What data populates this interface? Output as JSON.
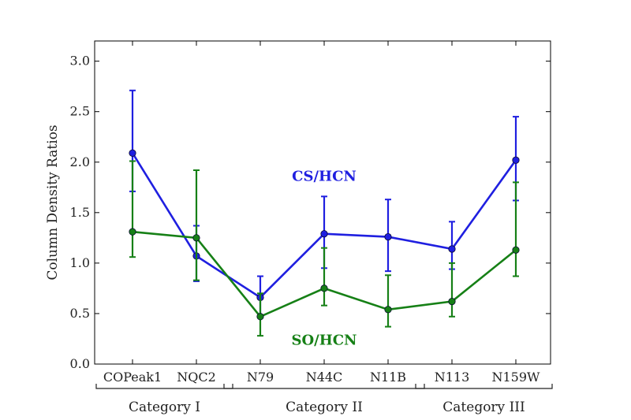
{
  "chart_data": {
    "type": "line",
    "title": "",
    "xlabel": "",
    "ylabel": "Column Density Ratios",
    "categories": [
      "COPeak1",
      "NQC2",
      "N79",
      "N44C",
      "N11B",
      "N113",
      "N159W"
    ],
    "ylim": [
      0.0,
      3.2
    ],
    "yticks": [
      "0.0",
      "0.5",
      "1.0",
      "1.5",
      "2.0",
      "2.5",
      "3.0"
    ],
    "ytick_values": [
      0.0,
      0.5,
      1.0,
      1.5,
      2.0,
      2.5,
      3.0
    ],
    "grid": false,
    "legend": "none",
    "series": [
      {
        "name": "CS/HCN",
        "color": "#1f1fe0",
        "values": [
          2.09,
          1.07,
          0.66,
          1.29,
          1.26,
          1.14,
          2.02
        ],
        "err_low": [
          1.71,
          0.82,
          0.47,
          0.95,
          0.92,
          0.94,
          1.62
        ],
        "err_high": [
          2.71,
          1.37,
          0.87,
          1.66,
          1.63,
          1.41,
          2.45
        ]
      },
      {
        "name": "SO/HCN",
        "color": "#168016",
        "values": [
          1.31,
          1.25,
          0.47,
          0.75,
          0.54,
          0.62,
          1.13
        ],
        "err_low": [
          1.06,
          0.83,
          0.28,
          0.58,
          0.37,
          0.47,
          0.87
        ],
        "err_high": [
          2.01,
          1.92,
          0.7,
          1.15,
          0.88,
          1.0,
          1.8
        ]
      }
    ],
    "annotations": [
      {
        "text": "CS/HCN",
        "series": 0,
        "at_index": 3,
        "at_value": 1.86
      },
      {
        "text": "SO/HCN",
        "series": 1,
        "at_index": 3,
        "at_value": 0.24
      }
    ],
    "groups": [
      {
        "label": "Category I",
        "from": 0,
        "to": 1
      },
      {
        "label": "Category II",
        "from": 2,
        "to": 4
      },
      {
        "label": "Category III",
        "from": 5,
        "to": 6
      }
    ]
  }
}
